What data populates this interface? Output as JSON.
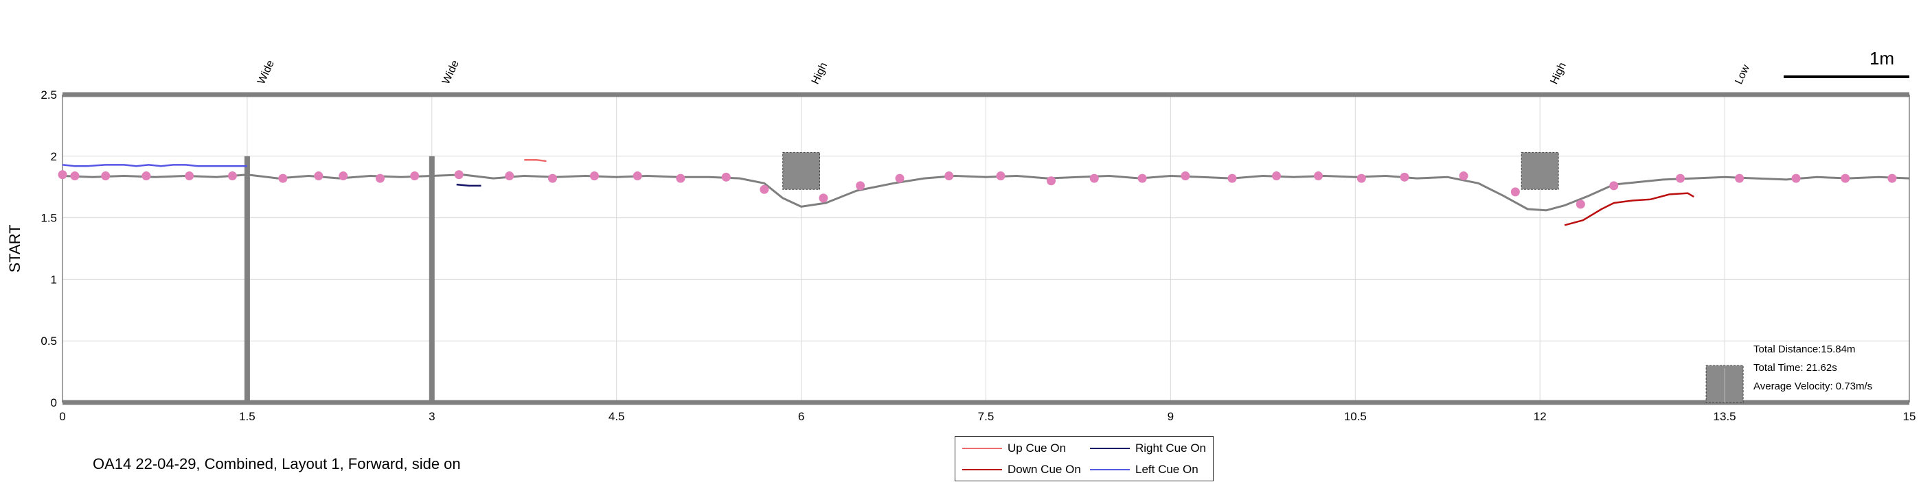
{
  "chart_data": {
    "type": "line",
    "title": "",
    "xlabel": "",
    "ylabel": "START",
    "xlim": [
      0,
      15
    ],
    "ylim": [
      0,
      2.5
    ],
    "x_ticks": [
      "0",
      "1.5",
      "3",
      "4.5",
      "6",
      "7.5",
      "9",
      "10.5",
      "12",
      "13.5",
      "15"
    ],
    "y_ticks": [
      "0",
      "0.5",
      "1",
      "1.5",
      "2",
      "2.5"
    ],
    "grid": true,
    "legend_placement": "bottom-center",
    "scale_bar_label": "1m",
    "event_labels": [
      {
        "label": "Wide",
        "x": 1.5
      },
      {
        "label": "Wide",
        "x": 3.0
      },
      {
        "label": "High",
        "x": 6.0
      },
      {
        "label": "High",
        "x": 12.0
      },
      {
        "label": "Low",
        "x": 13.5
      }
    ],
    "walls": [
      {
        "x": 1.5,
        "y_min": 0,
        "y_max": 2.0
      },
      {
        "x": 3.0,
        "y_min": 0,
        "y_max": 2.0
      }
    ],
    "obstacles": [
      {
        "kind": "high",
        "x_center": 6.0,
        "y_min": 1.73,
        "y_max": 2.03
      },
      {
        "kind": "high",
        "x_center": 12.0,
        "y_min": 1.73,
        "y_max": 2.03
      },
      {
        "kind": "low",
        "x_center": 13.5,
        "y_min": 0,
        "y_max": 0.3
      }
    ],
    "series": [
      {
        "name": "path",
        "color": "#7f7f7f",
        "x": [
          0,
          0.25,
          0.5,
          0.75,
          1.0,
          1.25,
          1.5,
          1.75,
          2.0,
          2.25,
          2.5,
          2.75,
          3.0,
          3.25,
          3.5,
          3.75,
          4.0,
          4.25,
          4.5,
          4.75,
          5.0,
          5.25,
          5.5,
          5.7,
          5.85,
          6.0,
          6.2,
          6.45,
          6.75,
          7.0,
          7.25,
          7.5,
          7.75,
          8.0,
          8.25,
          8.5,
          8.75,
          9.0,
          9.25,
          9.5,
          9.75,
          10.0,
          10.25,
          10.5,
          10.75,
          11.0,
          11.25,
          11.5,
          11.7,
          11.9,
          12.05,
          12.2,
          12.4,
          12.6,
          12.8,
          13.0,
          13.25,
          13.5,
          13.75,
          14.0,
          14.25,
          14.5,
          14.75,
          15.0
        ],
        "y": [
          1.84,
          1.83,
          1.84,
          1.83,
          1.84,
          1.83,
          1.85,
          1.82,
          1.84,
          1.82,
          1.84,
          1.83,
          1.84,
          1.85,
          1.82,
          1.84,
          1.83,
          1.84,
          1.83,
          1.84,
          1.83,
          1.83,
          1.82,
          1.78,
          1.66,
          1.59,
          1.62,
          1.72,
          1.78,
          1.82,
          1.84,
          1.83,
          1.84,
          1.82,
          1.83,
          1.84,
          1.82,
          1.84,
          1.83,
          1.82,
          1.84,
          1.83,
          1.84,
          1.83,
          1.84,
          1.82,
          1.83,
          1.78,
          1.68,
          1.57,
          1.56,
          1.6,
          1.68,
          1.77,
          1.79,
          1.81,
          1.82,
          1.83,
          1.82,
          1.81,
          1.83,
          1.82,
          1.83,
          1.82
        ]
      },
      {
        "name": "markers",
        "color": "#e07fb8",
        "x": [
          0,
          0.1,
          0.35,
          0.68,
          1.03,
          1.38,
          1.79,
          2.08,
          2.28,
          2.58,
          2.86,
          3.22,
          3.63,
          3.98,
          4.32,
          4.67,
          5.02,
          5.39,
          5.7,
          6.18,
          6.48,
          6.8,
          7.2,
          7.62,
          8.03,
          8.38,
          8.77,
          9.12,
          9.5,
          9.86,
          10.2,
          10.55,
          10.9,
          11.38,
          11.8,
          12.33,
          12.6,
          13.14,
          13.62,
          14.08,
          14.48,
          14.86
        ],
        "y": [
          1.85,
          1.84,
          1.84,
          1.84,
          1.84,
          1.84,
          1.82,
          1.84,
          1.84,
          1.82,
          1.84,
          1.85,
          1.84,
          1.82,
          1.84,
          1.84,
          1.82,
          1.83,
          1.73,
          1.66,
          1.76,
          1.82,
          1.84,
          1.84,
          1.8,
          1.82,
          1.82,
          1.84,
          1.82,
          1.84,
          1.84,
          1.82,
          1.83,
          1.84,
          1.71,
          1.61,
          1.76,
          1.82,
          1.82,
          1.82,
          1.82,
          1.82
        ]
      },
      {
        "name": "Left Cue On",
        "color": "#5555e6",
        "x": [
          0,
          0.1,
          0.2,
          0.35,
          0.5,
          0.6,
          0.7,
          0.8,
          0.9,
          1.0,
          1.1,
          1.2,
          1.3,
          1.4,
          1.5
        ],
        "y": [
          1.93,
          1.92,
          1.92,
          1.93,
          1.93,
          1.92,
          1.93,
          1.92,
          1.93,
          1.93,
          1.92,
          1.92,
          1.92,
          1.92,
          1.92
        ]
      },
      {
        "name": "Right Cue On",
        "color": "#141466",
        "x": [
          3.2,
          3.3,
          3.4
        ],
        "y": [
          1.77,
          1.76,
          1.76
        ]
      },
      {
        "name": "Up Cue On",
        "color": "#ef6b6b",
        "x": [
          3.75,
          3.85,
          3.93
        ],
        "y": [
          1.97,
          1.97,
          1.96
        ]
      },
      {
        "name": "Down Cue On",
        "color": "#bb0f0f",
        "x": [
          12.2,
          12.35,
          12.5,
          12.6,
          12.75,
          12.9,
          13.05,
          13.2,
          13.25
        ],
        "y": [
          1.44,
          1.48,
          1.57,
          1.62,
          1.64,
          1.65,
          1.69,
          1.7,
          1.67
        ]
      }
    ]
  },
  "legend": {
    "up": {
      "label": "Up Cue On",
      "color": "#ef6b6b"
    },
    "right": {
      "label": "Right Cue On",
      "color": "#141466"
    },
    "down": {
      "label": "Down Cue On",
      "color": "#bb0f0f"
    },
    "left": {
      "label": "Left Cue On",
      "color": "#5555e6"
    }
  },
  "stats": {
    "distance": "Total Distance:15.84m",
    "time": "Total Time: 21.62s",
    "velocity": "Average Velocity: 0.73m/s"
  },
  "footer": "OA14 22-04-29, Combined, Layout 1, Forward, side on"
}
